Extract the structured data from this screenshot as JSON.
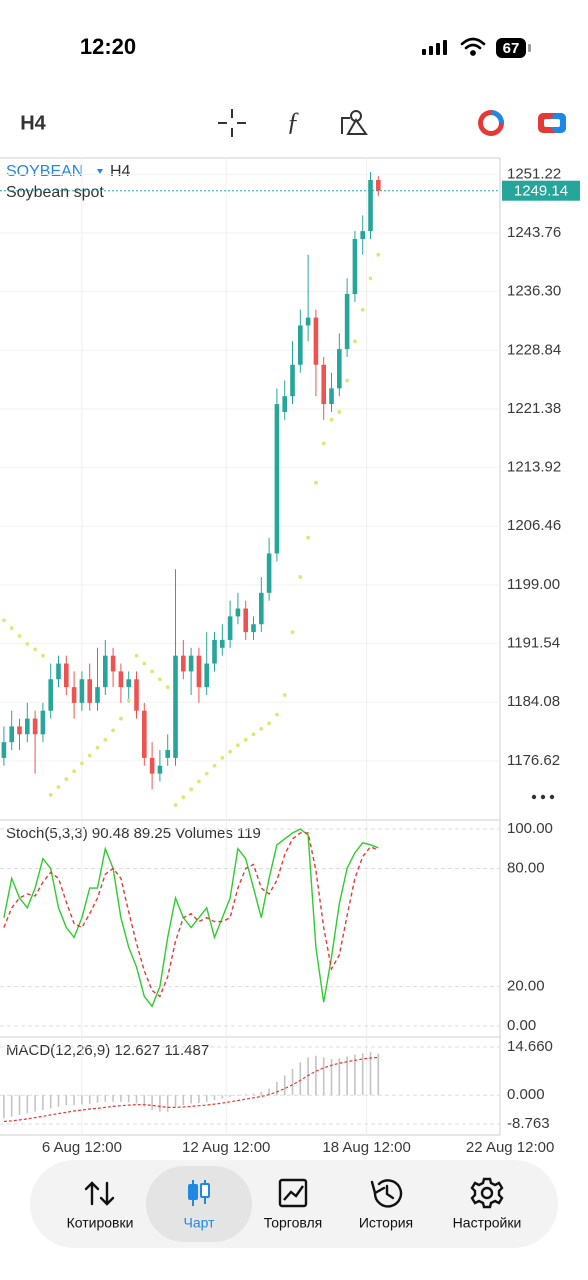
{
  "status_bar": {
    "time": "12:20",
    "battery": 67
  },
  "toolbar": {
    "timeframe": "H4"
  },
  "chart_data": [
    {
      "type": "candlestick",
      "symbol": "SOYBEAN",
      "timeframe": "H4",
      "subtitle": "Soybean spot",
      "up_color": "#26a69a",
      "down_color": "#ef5350",
      "open": [
        1177,
        1179,
        1181,
        1180,
        1182,
        1180,
        1183,
        1187,
        1189,
        1186,
        1184,
        1187,
        1184,
        1186,
        1190,
        1188,
        1186,
        1187,
        1183,
        1177,
        1175,
        1177,
        1177,
        1190,
        1188,
        1190,
        1186,
        1189,
        1191,
        1192,
        1195,
        1196,
        1193,
        1194,
        1198,
        1203,
        1221,
        1223,
        1227,
        1232,
        1233,
        1227,
        1222,
        1224,
        1229,
        1236,
        1243,
        1244,
        1250.5
      ],
      "high": [
        1181,
        1183,
        1182,
        1184,
        1183,
        1184,
        1189,
        1190,
        1190,
        1188,
        1188,
        1189,
        1191,
        1192,
        1191,
        1189,
        1188,
        1188,
        1184,
        1179,
        1178,
        1180,
        1201,
        1192,
        1191,
        1191,
        1193,
        1193,
        1194,
        1197,
        1198,
        1197,
        1195,
        1200,
        1205,
        1224,
        1225,
        1230,
        1234,
        1241,
        1234,
        1228,
        1226,
        1231,
        1238,
        1244,
        1246,
        1251.5,
        1251
      ],
      "low": [
        1176,
        1178,
        1178,
        1179,
        1175,
        1179,
        1182,
        1186,
        1185,
        1182,
        1183,
        1183,
        1183,
        1185,
        1186,
        1184,
        1184,
        1182,
        1176,
        1173,
        1174,
        1176,
        1176,
        1187,
        1185,
        1184,
        1185,
        1188,
        1190,
        1191,
        1194,
        1192,
        1192,
        1193,
        1197,
        1202,
        1220,
        1222,
        1226,
        1230,
        1223,
        1220,
        1221,
        1223,
        1228,
        1235,
        1241,
        1243,
        1248.5
      ],
      "close": [
        1179,
        1181,
        1180,
        1182,
        1180,
        1183,
        1187,
        1189,
        1186,
        1184,
        1187,
        1184,
        1186,
        1190,
        1188,
        1186,
        1187,
        1183,
        1177,
        1175,
        1176,
        1178,
        1190,
        1188,
        1190,
        1186,
        1189,
        1192,
        1192,
        1195,
        1196,
        1193,
        1194,
        1198,
        1203,
        1222,
        1223,
        1227,
        1232,
        1233,
        1227,
        1222,
        1224,
        1229,
        1236,
        1243,
        1244,
        1250.5,
        1249.14
      ],
      "sar": {
        "color": "#dce775",
        "values": [
          1194.5,
          1193.5,
          1192.5,
          1191.5,
          1190.8,
          1190,
          1172.3,
          1173.3,
          1174.3,
          1175.3,
          1176.3,
          1177.3,
          1178.3,
          1179.3,
          1180.5,
          1182,
          1184.3,
          1190,
          1189,
          1188,
          1187,
          1186,
          1171,
          1172,
          1173,
          1174,
          1175,
          1176,
          1177,
          1177.8,
          1178.6,
          1179.3,
          1180,
          1180.7,
          1181.4,
          1182.5,
          1185,
          1193,
          1200,
          1205,
          1212,
          1217,
          1220,
          1221,
          1225,
          1230,
          1234,
          1238,
          1241
        ]
      },
      "ylim": [
        1169.1,
        1253.3
      ],
      "yticks": [
        1251.22,
        1243.76,
        {
          "value": 1236.3,
          "label": "1236.30"
        },
        1228.84,
        1221.38,
        1213.92,
        1206.46,
        {
          "value": 1199,
          "label": "1199.00"
        },
        1191.54,
        1184.08,
        1176.62
      ],
      "xlim": [
        -0.5,
        63.6
      ],
      "xticks": [
        {
          "value": 10,
          "label": "6 Aug 12:00"
        },
        {
          "value": 28.5,
          "label": "12 Aug 12:00"
        },
        {
          "value": 46.5,
          "label": "18 Aug 12:00"
        },
        {
          "value": 64.9,
          "label": "22 Aug 12:00"
        }
      ],
      "grid": true
    },
    {
      "type": "line",
      "title": "Stoch(5,3,3) 90.48 89.25 Volumes 119",
      "series": [
        {
          "color": "#2ecc2e",
          "dashed": false,
          "values": [
            55,
            75,
            65,
            60,
            70,
            85,
            80,
            60,
            50,
            45,
            55,
            70,
            70,
            90,
            80,
            55,
            40,
            30,
            15,
            10,
            20,
            45,
            65,
            55,
            50,
            55,
            60,
            45,
            55,
            65,
            90,
            85,
            70,
            55,
            75,
            92,
            95,
            98,
            100,
            97,
            40,
            12,
            35,
            62,
            80,
            88,
            93,
            92,
            90.48
          ]
        },
        {
          "color": "#e53935",
          "dashed": true,
          "values": [
            50,
            60,
            65,
            67,
            66,
            73,
            78,
            75,
            63,
            52,
            50,
            57,
            65,
            77,
            80,
            75,
            58,
            42,
            28,
            18,
            15,
            25,
            43,
            55,
            57,
            53,
            55,
            53,
            53,
            55,
            70,
            80,
            82,
            70,
            67,
            74,
            87,
            95,
            98,
            98,
            79,
            50,
            29,
            36,
            56,
            75,
            86,
            91,
            89.25
          ]
        }
      ],
      "ylim": [
        -5.6,
        104.6
      ],
      "yticks": [
        {
          "value": 100,
          "label": "100.00"
        },
        {
          "value": 80,
          "label": "80.00"
        },
        {
          "value": 20,
          "label": "20.00"
        },
        {
          "value": 0,
          "label": "0.00"
        }
      ]
    },
    {
      "type": "macd",
      "title": "MACD(12,26,9) 12.627 11.487",
      "series": [
        {
          "kind": "bar",
          "color": "#c4c4c4",
          "values": [
            -7,
            -6.5,
            -6,
            -5.5,
            -5,
            -4.5,
            -4,
            -3.5,
            -3,
            -3,
            -2.8,
            -2.6,
            -2.3,
            -2,
            -2,
            -2,
            -2.2,
            -2.5,
            -3.5,
            -4.5,
            -5,
            -5,
            -3.5,
            -3,
            -2.5,
            -2.4,
            -2,
            -1.5,
            -1,
            -0.5,
            0,
            0.3,
            0.5,
            1,
            2,
            4,
            6,
            8,
            10,
            11.5,
            12,
            11.5,
            11,
            11.2,
            11.8,
            12.3,
            12.8,
            13.2,
            12.627
          ]
        },
        {
          "kind": "line",
          "color": "#e53935",
          "values": [
            -8,
            -7.8,
            -7.5,
            -7.2,
            -6.8,
            -6.4,
            -6,
            -5.6,
            -5.2,
            -4.8,
            -4.5,
            -4.2,
            -4,
            -3.7,
            -3.4,
            -3.2,
            -3,
            -2.9,
            -2.9,
            -3.1,
            -3.4,
            -3.7,
            -3.7,
            -3.6,
            -3.4,
            -3.2,
            -3,
            -2.7,
            -2.4,
            -2,
            -1.6,
            -1.2,
            -0.8,
            -0.4,
            0.2,
            1,
            2,
            3.2,
            4.5,
            6,
            7.3,
            8.3,
            9.1,
            9.7,
            10.2,
            10.6,
            11,
            11.3,
            11.487
          ]
        }
      ],
      "ylim": [
        -12.1,
        17.7
      ],
      "yticks": [
        {
          "value": 14.66,
          "label": "14.660"
        },
        {
          "value": 0,
          "label": "0.000"
        },
        {
          "value": -8.763,
          "label": "-8.763"
        }
      ]
    }
  ],
  "nav": [
    "Котировки",
    "Чарт",
    "Торговля",
    "История",
    "Настройки"
  ]
}
